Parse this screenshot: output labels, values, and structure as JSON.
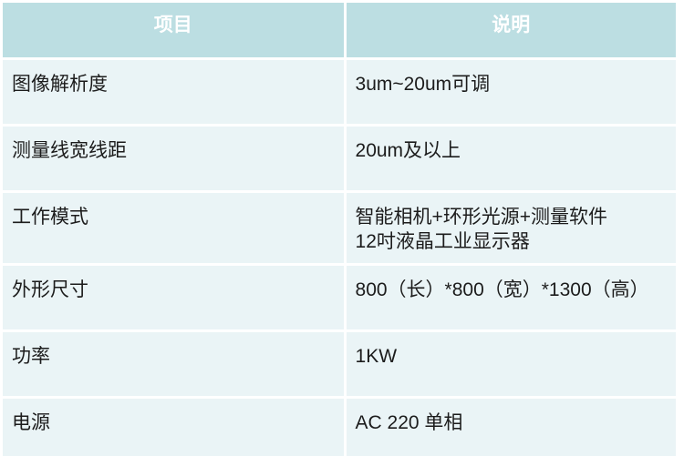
{
  "header": {
    "col1": "项目",
    "col2": "说明"
  },
  "rows": [
    {
      "item": "图像解析度",
      "desc": "3um~20um可调"
    },
    {
      "item": "测量线宽线距",
      "desc": "20um及以上"
    },
    {
      "item": "工作模式",
      "desc": "智能相机+环形光源+测量软件\n12吋液晶工业显示器"
    },
    {
      "item": "外形尺寸",
      "desc": "800（长）*800（宽）*1300（高）"
    },
    {
      "item": "功率",
      "desc": "1KW"
    },
    {
      "item": "电源",
      "desc": "AC 220 单相"
    }
  ],
  "colors": {
    "header_bg": "#bcdee2",
    "row_bg": "#eaf4f6",
    "header_text": "#ffffff",
    "body_text": "#1c1c1c",
    "divider": "#ffffff"
  }
}
